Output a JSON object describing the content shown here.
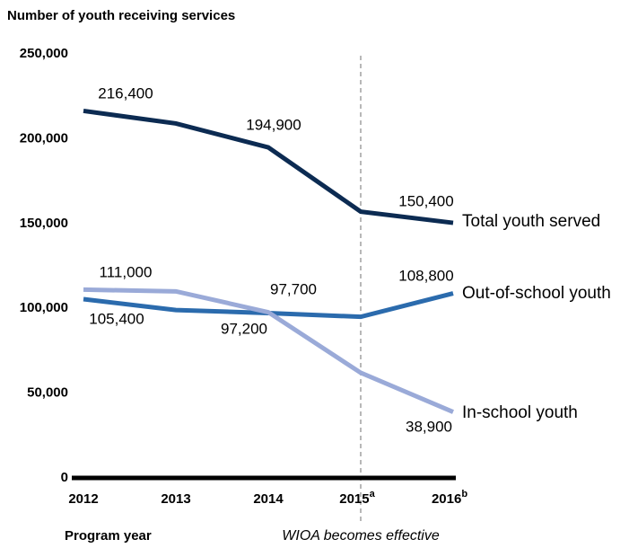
{
  "chart_data": {
    "type": "line",
    "title": "Number of youth receiving services",
    "x_label": "Program year",
    "categories": [
      "2012",
      "2013",
      "2014",
      "2015",
      "2016"
    ],
    "category_marks": [
      {
        "index": 3,
        "mark": "a"
      },
      {
        "index": 4,
        "mark": "b"
      }
    ],
    "annotation": {
      "index": 3,
      "text": "WIOA becomes effective"
    },
    "ylim": [
      0,
      250000
    ],
    "yticks": [
      0,
      {
        "value": 50000,
        "label": "50,000"
      },
      {
        "value": 100000,
        "label": "100,000"
      },
      {
        "value": 150000,
        "label": "150,000"
      },
      {
        "value": 200000,
        "label": "200,000"
      },
      {
        "value": 250000,
        "label": "250,000"
      }
    ],
    "series": [
      {
        "name": "Total youth served",
        "color": "#0c2b52",
        "values": [
          216400,
          209000,
          194900,
          157000,
          150400
        ],
        "value_labels": [
          "216,400",
          null,
          "194,900",
          null,
          "150,400"
        ]
      },
      {
        "name": "Out-of-school youth",
        "color": "#2b6bad",
        "values": [
          105400,
          99000,
          97200,
          95000,
          108800
        ],
        "value_labels": [
          "105,400",
          null,
          "97,200",
          null,
          "108,800"
        ]
      },
      {
        "name": "In-school youth",
        "color": "#9aaad8",
        "values": [
          111000,
          110000,
          97700,
          62000,
          38900
        ],
        "value_labels": [
          "111,000",
          null,
          "97,700",
          null,
          "38,900"
        ]
      }
    ]
  }
}
